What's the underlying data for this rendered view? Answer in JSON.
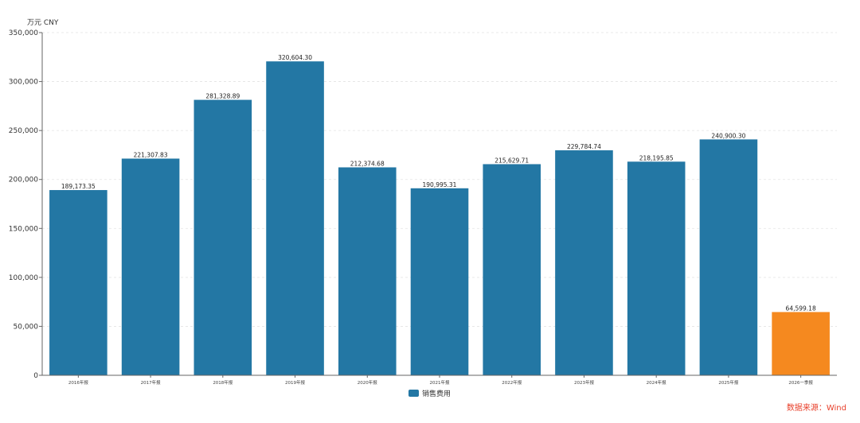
{
  "colors": {
    "bar": "#2377a4",
    "highlight": "#f5891f",
    "axis": "#666666",
    "grid": "#e3e3e3",
    "source": "#e8412c"
  },
  "chart_data": {
    "type": "bar",
    "unit_label": "万元  CNY",
    "categories": [
      "2016年报",
      "2017年报",
      "2018年报",
      "2019年报",
      "2020年报",
      "2021年报",
      "2022年报",
      "2023年报",
      "2024年报",
      "2025年报",
      "2026一季报"
    ],
    "series": [
      {
        "name": "销售费用",
        "values": [
          189173.35,
          221307.83,
          281328.89,
          320604.3,
          212374.68,
          190995.31,
          215629.71,
          229784.74,
          218195.85,
          240900.3,
          64599.18
        ],
        "value_labels": [
          "189,173.35",
          "221,307.83",
          "281,328.89",
          "320,604.30",
          "212,374.68",
          "190,995.31",
          "215,629.71",
          "229,784.74",
          "218,195.85",
          "240,900.30",
          "64,599.18"
        ]
      }
    ],
    "highlight_index": 10,
    "ylim": [
      0,
      350000
    ],
    "yticks": [
      0,
      50000,
      100000,
      150000,
      200000,
      250000,
      300000,
      350000
    ],
    "ytick_labels": [
      "0",
      "50,000",
      "100,000",
      "150,000",
      "200,000",
      "250,000",
      "300,000",
      "350,000"
    ],
    "grid": true,
    "legend_position": "bottom-center"
  },
  "source_text": "数据来源：Wind"
}
